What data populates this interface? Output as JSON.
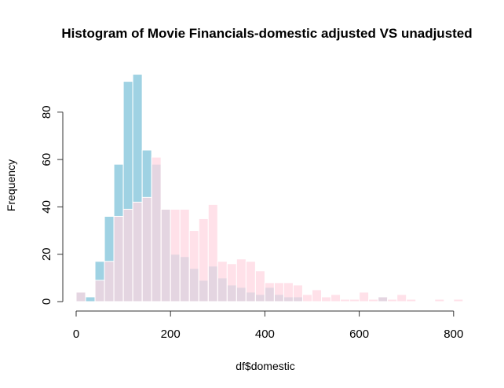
{
  "chart_data": {
    "type": "bar",
    "title": "Histogram of Movie Financials-domestic adjusted VS unadjusted",
    "xlabel": "df$domestic",
    "ylabel": "Frequency",
    "bin_width": 20,
    "xlim": [
      0,
      820
    ],
    "ylim": [
      0,
      96
    ],
    "x_ticks": [
      0,
      200,
      400,
      600,
      800
    ],
    "y_ticks": [
      0,
      20,
      40,
      60,
      80
    ],
    "grid": false,
    "legend": "none",
    "series": [
      {
        "color": "#9fd2e3",
        "bin_starts": [
          0,
          20,
          40,
          60,
          80,
          100,
          120,
          140,
          160,
          180,
          200,
          220,
          240,
          260,
          280,
          300,
          320,
          340,
          360,
          380,
          400,
          420,
          440,
          460,
          480,
          500,
          520,
          540,
          560,
          580,
          600,
          620,
          640,
          660,
          680,
          700,
          720,
          740,
          760,
          780,
          800
        ],
        "values": [
          4,
          2,
          17,
          36,
          58,
          93,
          96,
          64,
          58,
          39,
          20,
          19,
          14,
          9,
          15,
          10,
          7,
          6,
          4,
          3,
          6,
          3,
          2,
          2,
          0,
          0,
          0,
          0,
          0,
          0,
          0,
          0,
          2,
          0,
          0,
          0,
          0,
          0,
          0,
          0,
          0
        ]
      },
      {
        "color": "#ffd6e0",
        "bin_starts": [
          0,
          20,
          40,
          60,
          80,
          100,
          120,
          140,
          160,
          180,
          200,
          220,
          240,
          260,
          280,
          300,
          320,
          340,
          360,
          380,
          400,
          420,
          440,
          460,
          480,
          500,
          520,
          540,
          560,
          580,
          600,
          620,
          640,
          660,
          680,
          700,
          720,
          740,
          760,
          780,
          800
        ],
        "values": [
          4,
          0,
          9,
          17,
          36,
          39,
          42,
          44,
          61,
          39,
          39,
          39,
          30,
          35,
          41,
          17,
          16,
          18,
          17,
          13,
          8,
          8,
          8,
          7,
          3,
          5,
          2,
          3,
          1,
          1,
          4,
          1,
          2,
          1,
          3,
          1,
          0,
          0,
          1,
          0,
          1
        ]
      }
    ]
  }
}
